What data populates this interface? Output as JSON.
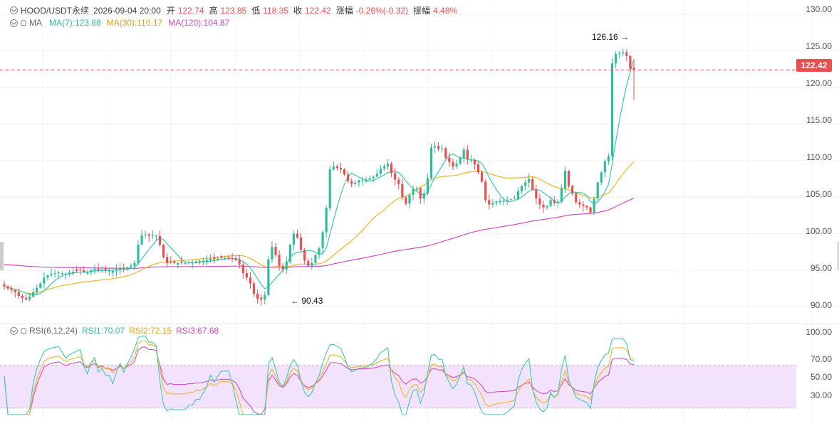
{
  "header": {
    "symbol": "HOOD/USDT永续",
    "datetime": "2026-09-04 20:00",
    "open_label": "开",
    "open": "122.74",
    "high_label": "高",
    "high": "123.85",
    "low_label": "低",
    "low": "118.35",
    "close_label": "收",
    "close": "122.42",
    "change_label": "涨幅",
    "change": "-0.26%(-0.32)",
    "amplitude_label": "振幅",
    "amplitude": "4.48%"
  },
  "ma_legend": {
    "label": "MA",
    "ma7": "MA(7):123.88",
    "ma30": "MA(30):110.17",
    "ma120": "MA(120):104.87"
  },
  "rsi_legend": {
    "label": "RSI(6,12,24)",
    "rsi1": "RSI1:70.07",
    "rsi2": "RSI2:72.15",
    "rsi3": "RSI3:67.68"
  },
  "colors": {
    "up": "#2ebd9b",
    "down": "#e8504f",
    "ma7": "#3cc8b4",
    "ma30": "#f0b429",
    "ma120": "#d14fc3",
    "rsi1": "#3cc8b4",
    "rsi2": "#f0b429",
    "rsi3": "#d14fc3",
    "rsi_band": "#f3e2fb"
  },
  "chart_data": [
    {
      "type": "candlestick",
      "title": "HOOD/USDT永续",
      "ylim": [
        88,
        131
      ],
      "yticks": [
        "130.00",
        "125.00",
        "120.00",
        "115.00",
        "110.00",
        "105.00",
        "100.00",
        "95.00",
        "90.00"
      ],
      "last_price": "122.42",
      "max_marker": "126.16",
      "min_marker": "90.43",
      "close_series": [
        92.8,
        92.5,
        92.3,
        92.0,
        91.5,
        91.2,
        91.0,
        91.4,
        92.0,
        92.6,
        93.2,
        94.0,
        94.3,
        94.5,
        94.6,
        94.7,
        94.6,
        94.5,
        94.7,
        94.8,
        94.9,
        95.0,
        94.8,
        94.7,
        95.0,
        95.2,
        95.0,
        95.1,
        95.0,
        95.0,
        94.9,
        95.1,
        95.3,
        95.2,
        95.4,
        95.6,
        96.0,
        98.5,
        99.8,
        99.9,
        99.7,
        99.8,
        99.7,
        98.5,
        96.8,
        96.0,
        96.1,
        96.0,
        96.0,
        96.0,
        96.0,
        96.1,
        96.1,
        96.2,
        96.2,
        96.3,
        96.4,
        96.6,
        96.5,
        96.6,
        96.7,
        96.7,
        96.7,
        96.6,
        96.4,
        95.8,
        94.6,
        94.0,
        93.2,
        91.8,
        91.1,
        91.0,
        91.6,
        96.5,
        98.2,
        97.1,
        95.6,
        95.1,
        96.2,
        98.5,
        100.0,
        99.5,
        97.8,
        96.3,
        95.6,
        96.0,
        97.1,
        98.0,
        100.2,
        103.5,
        108.8,
        109.2,
        109.0,
        108.8,
        108.1,
        107.2,
        106.8,
        107.0,
        107.3,
        107.3,
        107.4,
        107.6,
        107.8,
        108.2,
        108.9,
        109.2,
        109.6,
        108.3,
        107.4,
        106.8,
        105.0,
        104.1,
        105.3,
        106.1,
        106.2,
        104.8,
        105.5,
        107.6,
        111.8,
        112.0,
        111.6,
        111.7,
        110.4,
        109.8,
        109.2,
        109.6,
        110.4,
        111.5,
        110.2,
        110.1,
        109.5,
        108.4,
        107.1,
        104.6,
        104.0,
        104.2,
        104.4,
        104.5,
        104.5,
        104.6,
        104.7,
        104.8,
        105.8,
        106.5,
        107.0,
        107.5,
        106.0,
        104.8,
        104.0,
        103.6,
        103.8,
        104.6,
        104.2,
        104.4,
        106.2,
        108.6,
        106.5,
        105.5,
        104.3,
        104.0,
        103.8,
        103.6,
        102.9,
        104.8,
        107.0,
        108.4,
        109.9,
        110.6,
        123.3,
        124.6,
        124.7,
        124.8,
        124.3,
        122.6,
        122.42
      ]
    },
    {
      "type": "line",
      "title": "RSI(6,12,24)",
      "ylim": [
        22,
        100
      ],
      "yticks": [
        "100.00",
        "70.00",
        "50.00",
        "30.00"
      ],
      "band": [
        30,
        70
      ],
      "series": [
        {
          "name": "RSI1",
          "value": "70.07"
        },
        {
          "name": "RSI2",
          "value": "72.15"
        },
        {
          "name": "RSI3",
          "value": "67.68"
        }
      ]
    }
  ]
}
